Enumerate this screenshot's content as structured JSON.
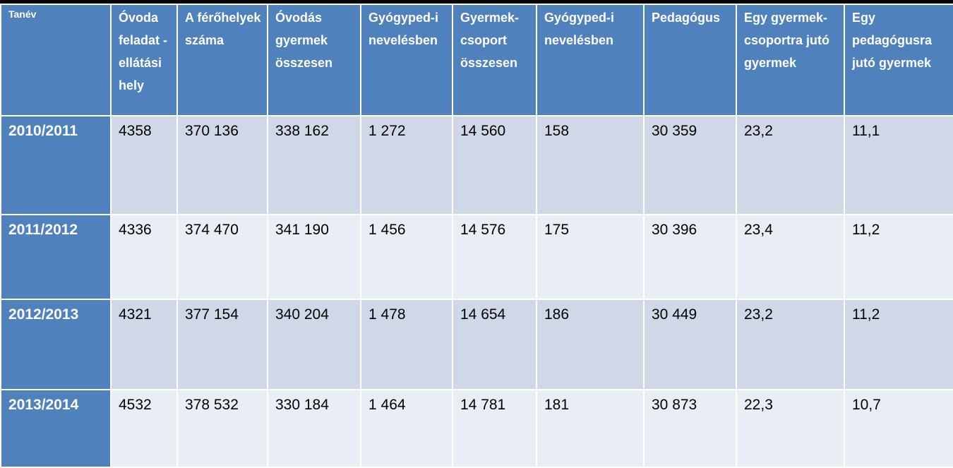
{
  "colors": {
    "header_bg": "#4f81bd",
    "row_band_dark": "#d0d8e8",
    "row_band_light": "#e9edf4",
    "outer_bg": "#000000",
    "header_text": "#ffffff"
  },
  "headers": [
    "Tanév",
    "Óvoda feladat - ellátási hely",
    "A férőhelyek száma",
    "Óvodás gyermek összesen",
    "Gyógyped-i nevelésben",
    "Gyermek-csoport összesen",
    "Gyógyped-i nevelésben",
    "Pedagógus",
    "Egy gyermek-csoportra jutó gyermek",
    "Egy pedagógusra jutó gyermek"
  ],
  "rows": [
    [
      "2010/2011",
      "4358",
      "370 136",
      "338 162",
      "1 272",
      "14 560",
      "158",
      "30 359",
      "23,2",
      "11,1"
    ],
    [
      "2011/2012",
      "4336",
      "374 470",
      "341 190",
      "1 456",
      "14 576",
      "175",
      "30 396",
      "23,4",
      "11,2"
    ],
    [
      "2012/2013",
      "4321",
      "377 154",
      "340 204",
      "1 478",
      "14 654",
      "186",
      "30 449",
      "23,2",
      "11,2"
    ],
    [
      "2013/2014",
      "4532",
      "378 532",
      "330 184",
      "1 464",
      "14 781",
      "181",
      "30 873",
      "22,3",
      "10,7"
    ]
  ]
}
